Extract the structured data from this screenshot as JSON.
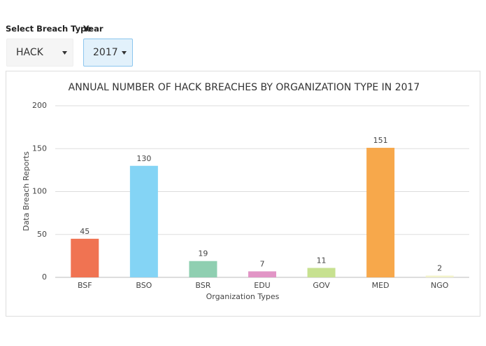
{
  "controls": {
    "breach_type_label": "Select Breach Type",
    "breach_type": "HACK",
    "year_label": "Year",
    "year": "2017"
  },
  "chart_data": {
    "type": "bar",
    "title": "ANNUAL NUMBER OF HACK BREACHES BY ORGANIZATION TYPE IN 2017",
    "x_label": "Organization Types",
    "y_label": "Data Breach Reports",
    "categories": [
      "BSF",
      "BSO",
      "BSR",
      "EDU",
      "GOV",
      "MED",
      "NGO"
    ],
    "values": [
      45,
      130,
      19,
      7,
      11,
      151,
      2
    ],
    "colors": [
      "#f07352",
      "#84d4f5",
      "#8fcfb1",
      "#e295c6",
      "#c7e190",
      "#f7a84b",
      "#f2f2c9"
    ],
    "ylim": [
      0,
      200
    ],
    "yticks": [
      0,
      50,
      100,
      150,
      200
    ],
    "grid": true
  }
}
